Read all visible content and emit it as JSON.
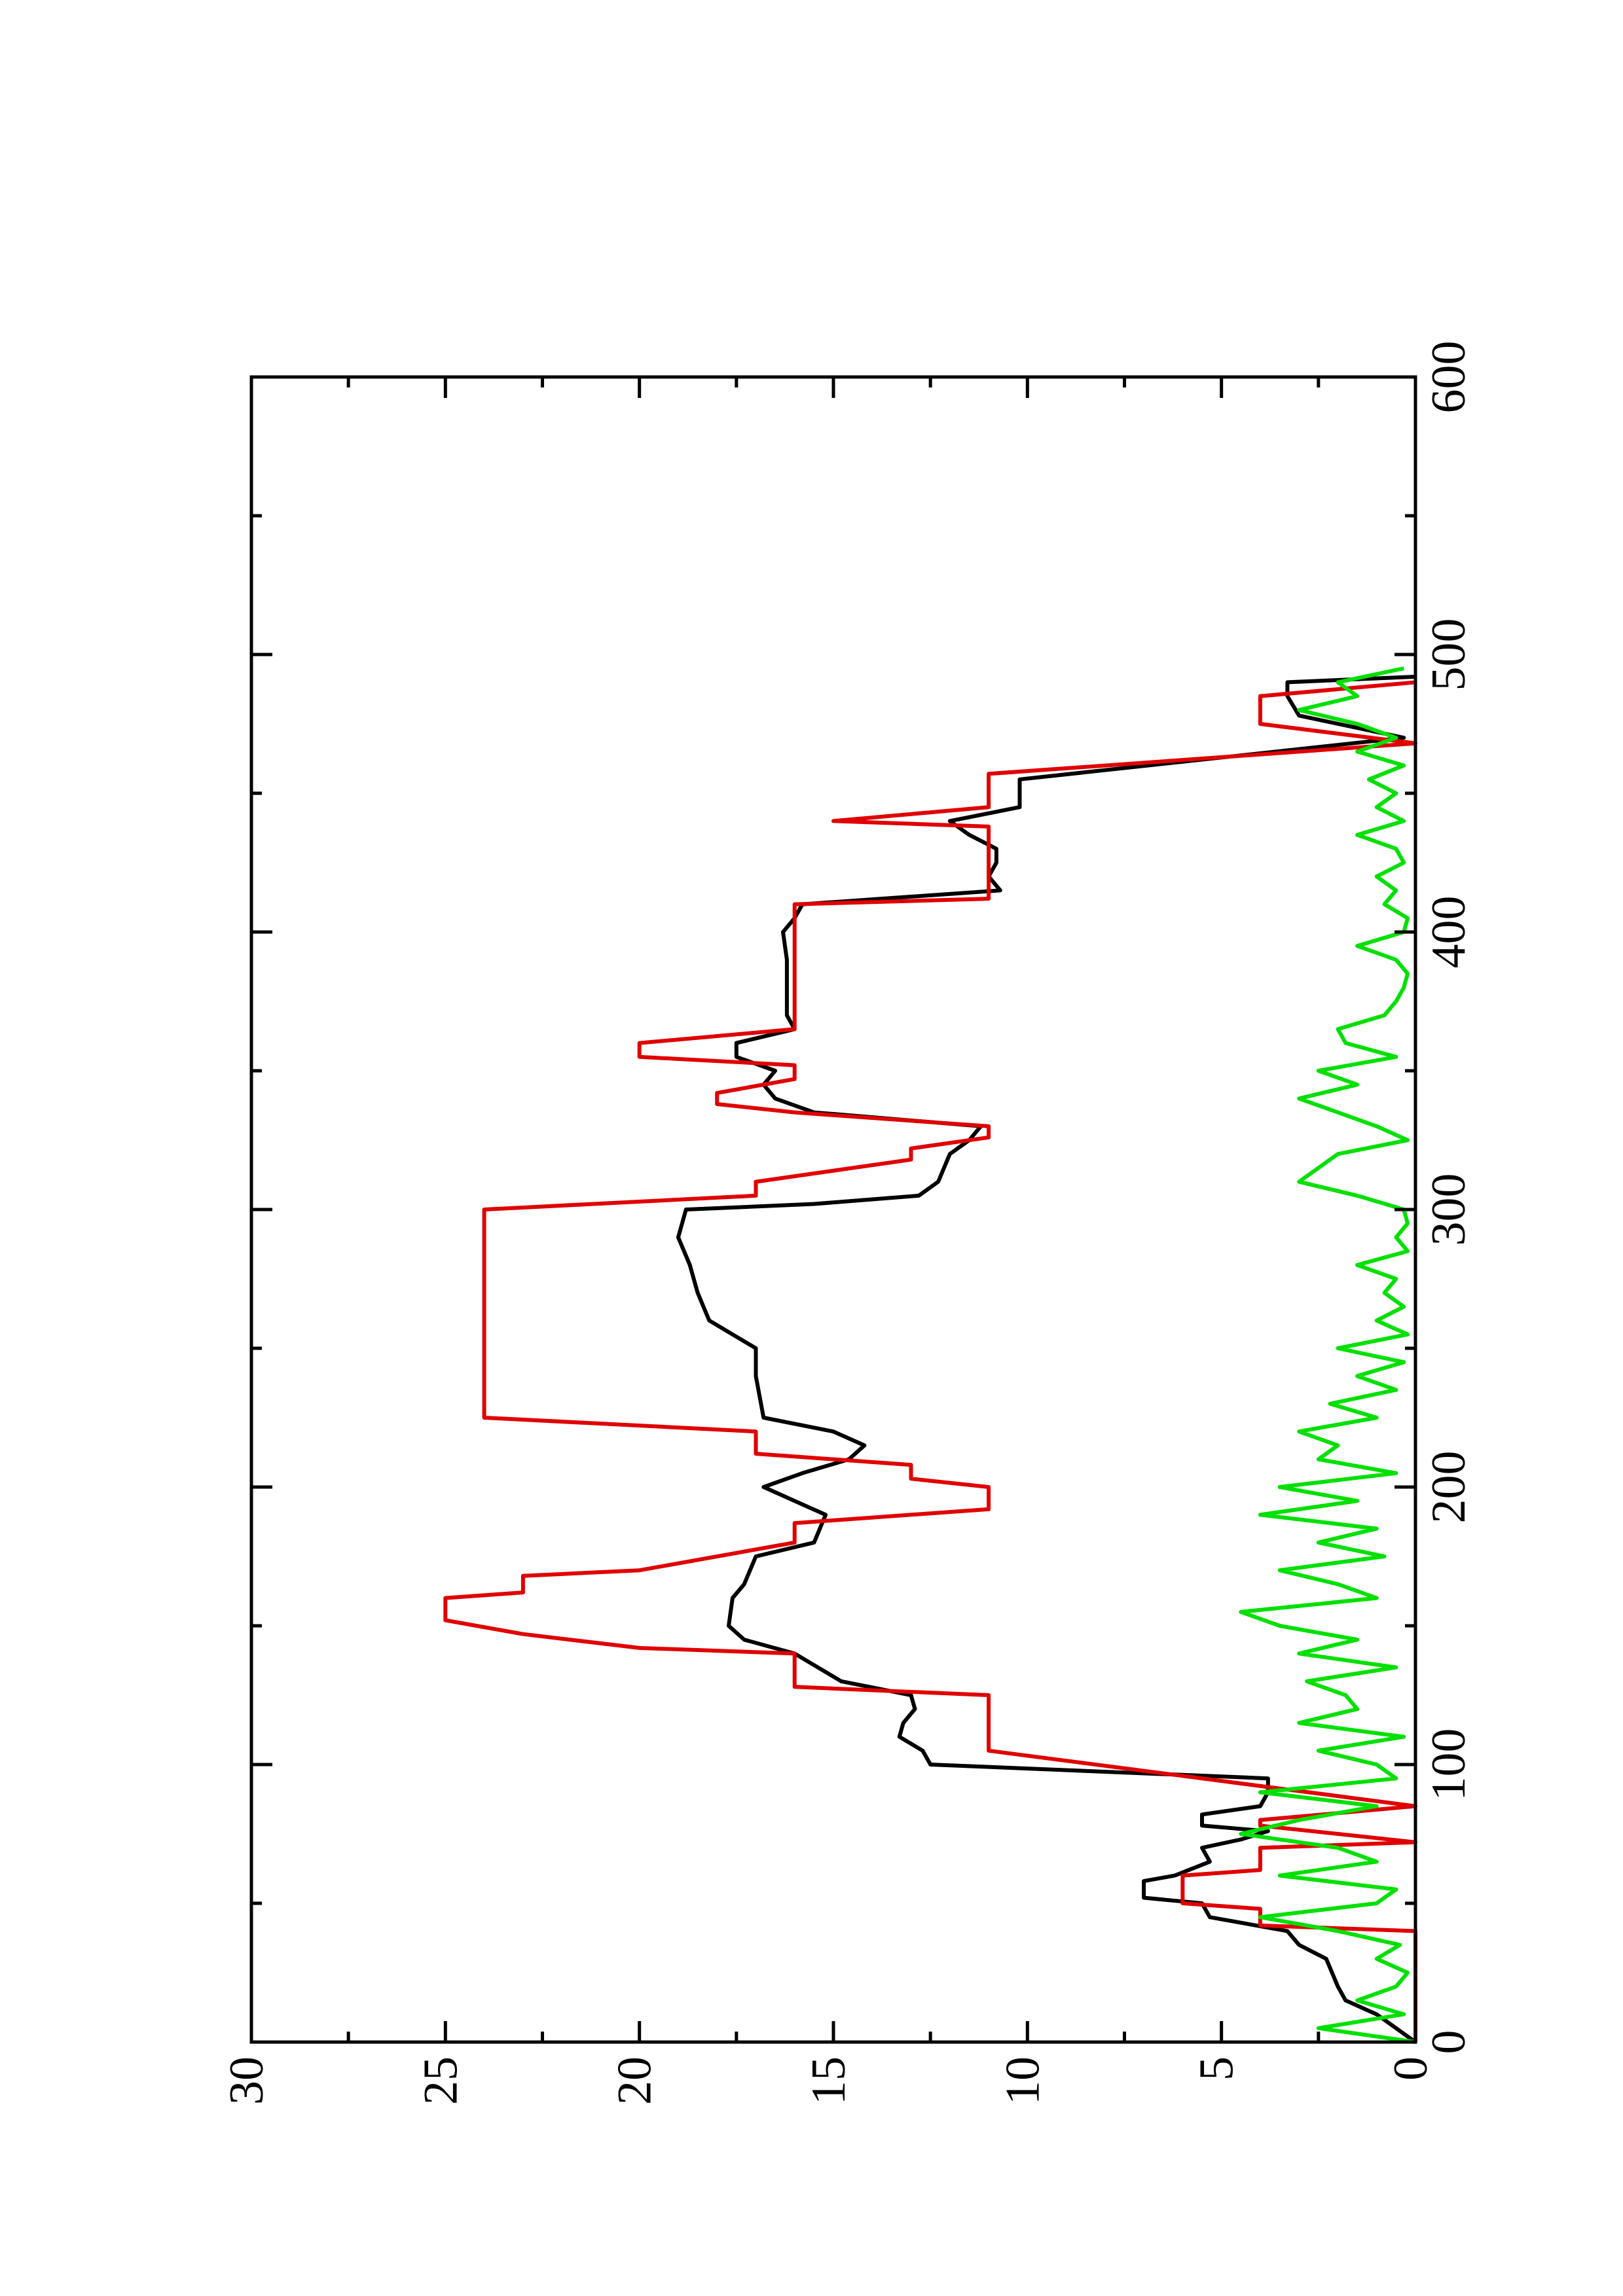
{
  "chart_data": {
    "type": "line",
    "xlim": [
      0,
      600
    ],
    "xticks": [
      0,
      100,
      200,
      300,
      400,
      500,
      600
    ],
    "xminorticks": [
      50,
      150,
      250,
      350,
      450,
      550
    ],
    "ylim": [
      0,
      30
    ],
    "yticks": [
      0,
      5,
      10,
      15,
      20,
      25,
      30
    ],
    "yminorticks": [
      2.5,
      7.5,
      12.5,
      17.5,
      22.5,
      27.5
    ],
    "rotated": true,
    "series": [
      {
        "color": "#000000",
        "x": [
          0,
          5,
          10,
          15,
          20,
          30,
          35,
          40,
          45,
          50,
          52,
          58,
          60,
          65,
          70,
          73,
          76,
          78,
          82,
          85,
          90,
          95,
          100,
          105,
          110,
          115,
          120,
          125,
          130,
          140,
          145,
          150,
          160,
          165,
          175,
          180,
          190,
          195,
          200,
          205,
          210,
          215,
          220,
          225,
          240,
          250,
          260,
          270,
          280,
          290,
          300,
          302,
          305,
          310,
          320,
          325,
          330,
          335,
          340,
          345,
          350,
          355,
          360,
          365,
          370,
          380,
          390,
          400,
          405,
          410,
          415,
          420,
          425,
          430,
          435,
          440,
          445,
          455,
          470,
          478,
          485,
          490,
          492
        ],
        "values": [
          0,
          0.5,
          1,
          1.8,
          2,
          2.3,
          3,
          3.3,
          5.3,
          5.5,
          7,
          7,
          6.2,
          5.3,
          5.5,
          4.5,
          3.8,
          5.5,
          5.5,
          4,
          3.8,
          3.8,
          12.5,
          12.7,
          13.3,
          13.2,
          12.9,
          13,
          14.8,
          16,
          17.3,
          17.7,
          17.6,
          17.3,
          17,
          15.5,
          15.2,
          16,
          16.8,
          15.8,
          14.6,
          14.2,
          15,
          16.8,
          17,
          17,
          18.2,
          18.5,
          18.7,
          19,
          18.8,
          15.5,
          12.8,
          12.3,
          12,
          11.5,
          11.2,
          15.5,
          16.5,
          16.8,
          16.5,
          17.5,
          17.5,
          16,
          16.2,
          16.2,
          16.2,
          16.3,
          16,
          15.8,
          10.7,
          11,
          10.8,
          10.8,
          11.5,
          12,
          10.2,
          10.2,
          0.3,
          3,
          3.3,
          3.3,
          0
        ]
      },
      {
        "color": "#e00000",
        "x": [
          0,
          40,
          42,
          48,
          50,
          60,
          62,
          70,
          72,
          78,
          80,
          85,
          105,
          125,
          128,
          140,
          142,
          147,
          152,
          160,
          162,
          168,
          170,
          180,
          187,
          192,
          200,
          203,
          208,
          212,
          220,
          225,
          300,
          305,
          310,
          318,
          322,
          326,
          330,
          335,
          338,
          342,
          347,
          352,
          355,
          360,
          365,
          410,
          412,
          438,
          440,
          445,
          457,
          468,
          475,
          485,
          490
        ],
        "values": [
          0,
          0,
          4,
          4,
          6,
          6,
          4,
          4,
          0,
          4,
          4,
          0,
          11,
          11,
          16,
          16,
          20,
          23,
          25,
          25,
          23,
          23,
          20,
          16,
          16,
          11,
          11,
          13,
          13,
          17,
          17,
          24,
          24,
          17,
          17,
          13,
          13,
          11,
          11,
          16,
          18,
          18,
          16,
          16,
          20,
          20,
          16,
          16,
          11,
          11,
          15,
          11,
          11,
          0,
          4,
          4,
          0
        ]
      },
      {
        "color": "#00e000",
        "x": [
          0,
          5,
          10,
          15,
          20,
          25,
          30,
          35,
          40,
          45,
          50,
          55,
          60,
          65,
          70,
          75,
          80,
          85,
          90,
          95,
          100,
          105,
          110,
          115,
          120,
          125,
          130,
          135,
          140,
          145,
          150,
          155,
          160,
          165,
          170,
          175,
          180,
          185,
          190,
          195,
          200,
          205,
          210,
          215,
          220,
          225,
          230,
          235,
          240,
          245,
          250,
          255,
          260,
          265,
          270,
          275,
          280,
          285,
          290,
          295,
          300,
          305,
          310,
          315,
          320,
          325,
          330,
          335,
          340,
          345,
          350,
          355,
          360,
          365,
          370,
          375,
          380,
          385,
          390,
          395,
          400,
          405,
          410,
          415,
          420,
          425,
          430,
          435,
          440,
          445,
          450,
          455,
          460,
          465,
          470,
          475,
          480,
          485,
          490,
          495
        ],
        "values": [
          0,
          2.5,
          0.3,
          1.5,
          0.5,
          0.2,
          1,
          0.4,
          2,
          4,
          1,
          0.5,
          3.5,
          1,
          2,
          4.5,
          3,
          1,
          4,
          0.5,
          1,
          2.5,
          0.3,
          3,
          1.5,
          1.8,
          2.8,
          0.5,
          3,
          1.5,
          3.5,
          4.5,
          1,
          2,
          3.5,
          0.8,
          2.5,
          1,
          4,
          1.5,
          3.5,
          0.5,
          2.5,
          2,
          3,
          1,
          2.2,
          0.5,
          1.5,
          0.3,
          2,
          0.2,
          1,
          0.3,
          0.8,
          0.5,
          1.5,
          0.2,
          0.5,
          0.2,
          0.3,
          1.5,
          3,
          2.5,
          2,
          0.2,
          1,
          2,
          3,
          1.5,
          2.5,
          0.5,
          1.8,
          2,
          0.8,
          0.5,
          0.3,
          0.2,
          0.5,
          1.5,
          0.3,
          0.2,
          0.8,
          0.5,
          1,
          0.3,
          0.5,
          1.5,
          0.3,
          1,
          0.5,
          1.2,
          0.3,
          1.5,
          0.5,
          1.5,
          3,
          1.5,
          2,
          0.3
        ]
      }
    ]
  }
}
